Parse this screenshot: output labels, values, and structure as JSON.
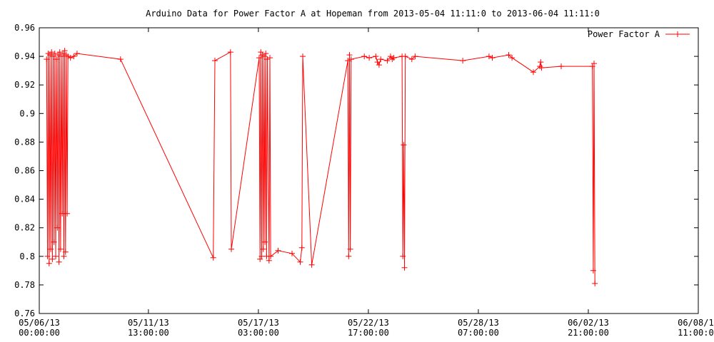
{
  "chart_data": {
    "type": "line",
    "title": "Arduino Data for Power Factor A at Hopeman from 2013-05-04 11:11:0 to 2013-06-04 11:11:0",
    "xlabel": "",
    "ylabel": "",
    "ylim": [
      0.76,
      0.96
    ],
    "y_ticks": [
      0.76,
      0.78,
      0.8,
      0.82,
      0.84,
      0.86,
      0.88,
      0.9,
      0.92,
      0.94,
      0.96
    ],
    "y_tick_labels": [
      "0.76",
      "0.78",
      "0.8",
      "0.82",
      "0.84",
      "0.86",
      "0.88",
      "0.9",
      "0.92",
      "0.94",
      "0.96"
    ],
    "xlim": [
      "2013-05-06 00:00",
      "2013-06-08 11:00"
    ],
    "x_ticks": [
      {
        "value": "2013-05-06 00:00",
        "line1": "05/06/13",
        "line2": "00:00:00"
      },
      {
        "value": "2013-05-11 13:00",
        "line1": "05/11/13",
        "line2": "13:00:00"
      },
      {
        "value": "2013-05-17 03:00",
        "line1": "05/17/13",
        "line2": "03:00:00"
      },
      {
        "value": "2013-05-22 17:00",
        "line1": "05/22/13",
        "line2": "17:00:00"
      },
      {
        "value": "2013-05-28 07:00",
        "line1": "05/28/13",
        "line2": "07:00:00"
      },
      {
        "value": "2013-06-02 21:00",
        "line1": "06/02/13",
        "line2": "21:00:00"
      },
      {
        "value": "2013-06-08 11:00",
        "line1": "06/08/13",
        "line2": "11:00:00"
      }
    ],
    "grid": false,
    "legend": "top-right",
    "series": [
      {
        "name": "Power Factor A",
        "color": "#ff0000",
        "marker": "plus",
        "points": [
          [
            "2013-05-06 09:00",
            0.938
          ],
          [
            "2013-05-06 10:00",
            0.8
          ],
          [
            "2013-05-06 11:00",
            0.942
          ],
          [
            "2013-05-06 12:00",
            0.795
          ],
          [
            "2013-05-06 13:00",
            0.941
          ],
          [
            "2013-05-06 14:00",
            0.805
          ],
          [
            "2013-05-06 15:00",
            0.943
          ],
          [
            "2013-05-06 16:00",
            0.798
          ],
          [
            "2013-05-06 17:00",
            0.94
          ],
          [
            "2013-05-06 18:00",
            0.81
          ],
          [
            "2013-05-06 19:00",
            0.942
          ],
          [
            "2013-05-06 20:00",
            0.8
          ],
          [
            "2013-05-06 21:00",
            0.938
          ],
          [
            "2013-05-06 22:00",
            0.82
          ],
          [
            "2013-05-06 23:00",
            0.941
          ],
          [
            "2013-05-07 00:00",
            0.796
          ],
          [
            "2013-05-07 01:00",
            0.943
          ],
          [
            "2013-05-07 02:00",
            0.805
          ],
          [
            "2013-05-07 03:00",
            0.94
          ],
          [
            "2013-05-07 04:00",
            0.83
          ],
          [
            "2013-05-07 05:00",
            0.942
          ],
          [
            "2013-05-07 06:00",
            0.8
          ],
          [
            "2013-05-07 07:00",
            0.944
          ],
          [
            "2013-05-07 08:00",
            0.803
          ],
          [
            "2013-05-07 09:00",
            0.941
          ],
          [
            "2013-05-07 10:00",
            0.83
          ],
          [
            "2013-05-07 11:00",
            0.94
          ],
          [
            "2013-05-07 14:00",
            0.939
          ],
          [
            "2013-05-07 18:00",
            0.94
          ],
          [
            "2013-05-07 22:00",
            0.942
          ],
          [
            "2013-05-10 03:00",
            0.938
          ],
          [
            "2013-05-14 20:00",
            0.799
          ],
          [
            "2013-05-14 22:00",
            0.937
          ],
          [
            "2013-05-15 17:00",
            0.943
          ],
          [
            "2013-05-15 18:00",
            0.805
          ],
          [
            "2013-05-17 04:00",
            0.939
          ],
          [
            "2013-05-17 05:00",
            0.798
          ],
          [
            "2013-05-17 06:00",
            0.943
          ],
          [
            "2013-05-17 07:00",
            0.8
          ],
          [
            "2013-05-17 08:00",
            0.941
          ],
          [
            "2013-05-17 09:00",
            0.805
          ],
          [
            "2013-05-17 10:00",
            0.94
          ],
          [
            "2013-05-17 11:00",
            0.81
          ],
          [
            "2013-05-17 12:00",
            0.942
          ],
          [
            "2013-05-17 13:00",
            0.8
          ],
          [
            "2013-05-17 14:00",
            0.938
          ],
          [
            "2013-05-17 16:00",
            0.797
          ],
          [
            "2013-05-17 17:00",
            0.939
          ],
          [
            "2013-05-17 18:00",
            0.8
          ],
          [
            "2013-05-18 03:00",
            0.804
          ],
          [
            "2013-05-18 20:00",
            0.802
          ],
          [
            "2013-05-19 06:00",
            0.796
          ],
          [
            "2013-05-19 08:00",
            0.806
          ],
          [
            "2013-05-19 09:00",
            0.94
          ],
          [
            "2013-05-19 20:00",
            0.794
          ],
          [
            "2013-05-21 16:00",
            0.937
          ],
          [
            "2013-05-21 17:00",
            0.8
          ],
          [
            "2013-05-21 18:00",
            0.941
          ],
          [
            "2013-05-21 19:00",
            0.805
          ],
          [
            "2013-05-21 20:00",
            0.938
          ],
          [
            "2013-05-22 12:00",
            0.94
          ],
          [
            "2013-05-22 18:00",
            0.939
          ],
          [
            "2013-05-23 02:00",
            0.94
          ],
          [
            "2013-05-23 04:00",
            0.936
          ],
          [
            "2013-05-23 06:00",
            0.934
          ],
          [
            "2013-05-23 08:00",
            0.938
          ],
          [
            "2013-05-23 16:00",
            0.937
          ],
          [
            "2013-05-23 20:00",
            0.94
          ],
          [
            "2013-05-23 22:00",
            0.938
          ],
          [
            "2013-05-24 00:00",
            0.939
          ],
          [
            "2013-05-24 10:00",
            0.94
          ],
          [
            "2013-05-24 11:00",
            0.8
          ],
          [
            "2013-05-24 12:00",
            0.878
          ],
          [
            "2013-05-24 13:00",
            0.792
          ],
          [
            "2013-05-24 14:00",
            0.94
          ],
          [
            "2013-05-24 22:00",
            0.938
          ],
          [
            "2013-05-25 02:00",
            0.94
          ],
          [
            "2013-05-27 12:00",
            0.937
          ],
          [
            "2013-05-28 20:00",
            0.94
          ],
          [
            "2013-05-29 00:00",
            0.939
          ],
          [
            "2013-05-29 20:00",
            0.941
          ],
          [
            "2013-05-30 00:00",
            0.939
          ],
          [
            "2013-05-31 02:00",
            0.929
          ],
          [
            "2013-05-31 10:00",
            0.933
          ],
          [
            "2013-05-31 11:00",
            0.936
          ],
          [
            "2013-05-31 12:00",
            0.932
          ],
          [
            "2013-06-01 12:00",
            0.933
          ],
          [
            "2013-06-03 02:00",
            0.933
          ],
          [
            "2013-06-03 03:00",
            0.79
          ],
          [
            "2013-06-03 04:00",
            0.935
          ],
          [
            "2013-06-03 05:00",
            0.781
          ]
        ]
      }
    ]
  }
}
